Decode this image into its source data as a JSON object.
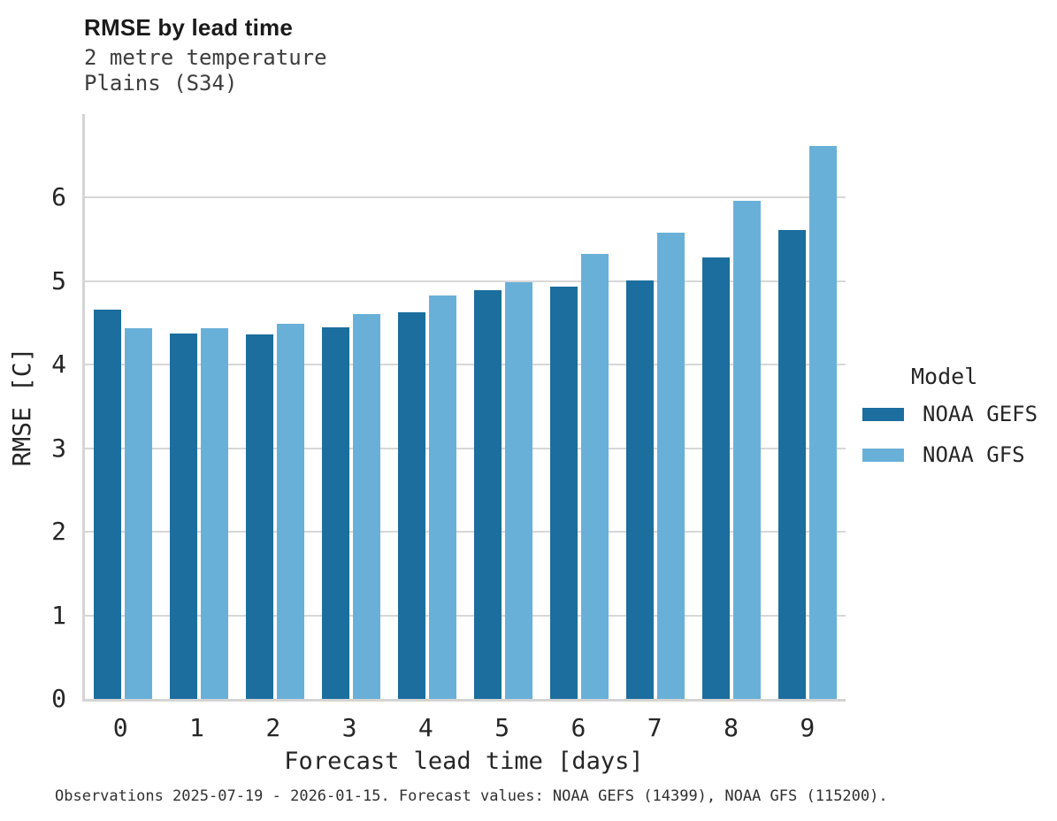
{
  "chart_data": {
    "type": "bar",
    "title": "RMSE by lead time",
    "subtitle_line_1": "2 metre temperature",
    "subtitle_line_2": "Plains (S34)",
    "xlabel": "Forecast lead time [days]",
    "ylabel": "RMSE [C]",
    "categories": [
      "0",
      "1",
      "2",
      "3",
      "4",
      "5",
      "6",
      "7",
      "8",
      "9"
    ],
    "series": [
      {
        "name": "NOAA GEFS",
        "color": "#1b6e9e",
        "values": [
          4.66,
          4.37,
          4.36,
          4.45,
          4.63,
          4.89,
          4.94,
          5.01,
          5.28,
          5.61
        ]
      },
      {
        "name": "NOAA GFS",
        "color": "#69b0d8",
        "values": [
          4.44,
          4.44,
          4.49,
          4.61,
          4.83,
          4.99,
          5.33,
          5.58,
          5.96,
          6.62
        ]
      }
    ],
    "ylim": [
      0,
      7
    ],
    "yticks": [
      0,
      1,
      2,
      3,
      4,
      5,
      6
    ],
    "grid": true,
    "legend_title": "Model",
    "legend_position": "right",
    "caption": "Observations 2025-07-19 - 2026-01-15. Forecast values: NOAA GEFS (14399), NOAA GFS (115200)."
  },
  "colors": {
    "bar_dark": "#1b6e9e",
    "bar_light": "#69b0d8",
    "gridline": "#d7d7d7",
    "text": "#262626"
  }
}
